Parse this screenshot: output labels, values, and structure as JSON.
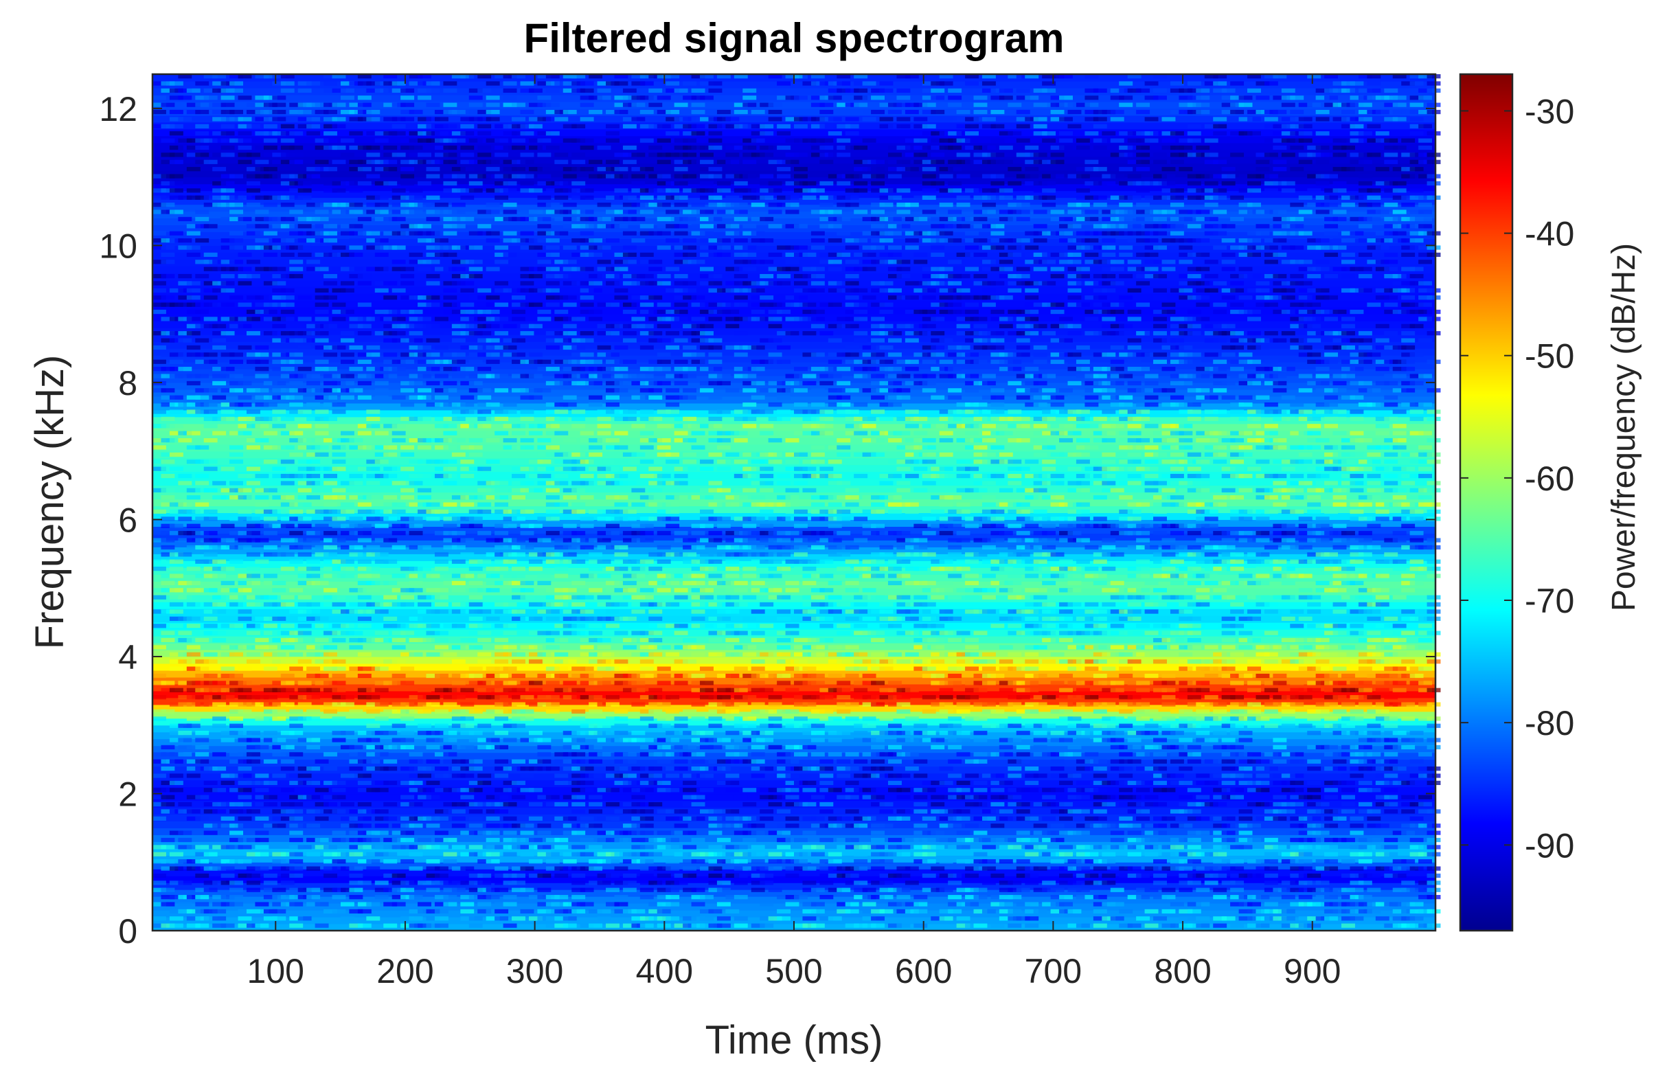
{
  "chart_data": {
    "type": "heatmap",
    "title": "Filtered signal spectrogram",
    "xlabel": "Time (ms)",
    "ylabel": "Frequency (kHz)",
    "xlim": [
      5,
      995
    ],
    "ylim": [
      0,
      12.5
    ],
    "x_ticks": [
      100,
      200,
      300,
      400,
      500,
      600,
      700,
      800,
      900
    ],
    "y_ticks": [
      0,
      2,
      4,
      6,
      8,
      10,
      12
    ],
    "colormap": "jet",
    "colorbar": {
      "label": "Power/frequency (dB/Hz)",
      "range": [
        -97,
        -27
      ],
      "ticks": [
        -30,
        -40,
        -50,
        -60,
        -70,
        -80,
        -90
      ]
    },
    "frequency_profile": {
      "frequency_khz": [
        0,
        0.5,
        0.8,
        1.1,
        1.5,
        2.0,
        2.5,
        3.0,
        3.2,
        3.4,
        3.6,
        3.9,
        4.2,
        4.6,
        5.0,
        5.3,
        5.8,
        6.2,
        6.6,
        7.0,
        7.4,
        7.7,
        8.2,
        9.0,
        10.0,
        10.5,
        11.0,
        11.5,
        12.0,
        12.5
      ],
      "power_db": [
        -76,
        -80,
        -90,
        -74,
        -84,
        -88,
        -84,
        -74,
        -56,
        -34,
        -42,
        -55,
        -66,
        -74,
        -64,
        -68,
        -86,
        -64,
        -70,
        -66,
        -64,
        -80,
        -84,
        -88,
        -86,
        -82,
        -92,
        -90,
        -83,
        -86
      ]
    },
    "grid": false
  },
  "colors": {
    "background": "#ffffff",
    "axis": "#262626",
    "title": "#000000"
  }
}
